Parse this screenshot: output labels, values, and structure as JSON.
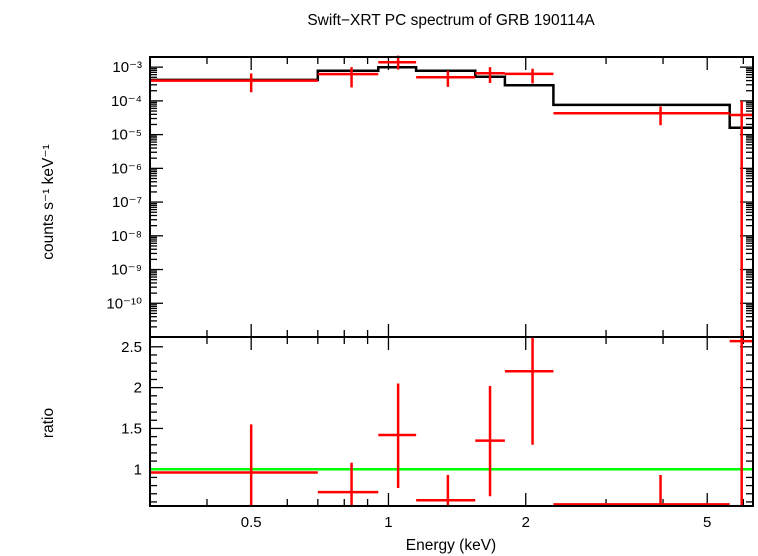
{
  "chart_data": [
    {
      "type": "line",
      "title": "Swift−XRT PC spectrum of GRB 190114A",
      "ylabel": "counts s⁻¹ keV⁻¹",
      "xscale": "log",
      "yscale": "log",
      "xlim": [
        0.3,
        6.3
      ],
      "ylim": [
        1e-11,
        0.002
      ],
      "y_ticks": [
        {
          "value": 1e-10,
          "label": "10⁻¹⁰"
        },
        {
          "value": 1e-09,
          "label": "10⁻⁹"
        },
        {
          "value": 1e-08,
          "label": "10⁻⁸"
        },
        {
          "value": 1e-07,
          "label": "10⁻⁷"
        },
        {
          "value": 1e-06,
          "label": "10⁻⁶"
        },
        {
          "value": 1e-05,
          "label": "10⁻⁵"
        },
        {
          "value": 0.0001,
          "label": "10⁻⁴"
        },
        {
          "value": 0.001,
          "label": "10⁻³"
        }
      ],
      "model_color": "#000000",
      "data_color": "#ff0000",
      "model_step": [
        {
          "x0": 0.3,
          "x1": 0.7,
          "y": 0.00042
        },
        {
          "x0": 0.7,
          "x1": 0.95,
          "y": 0.00078
        },
        {
          "x0": 0.95,
          "x1": 1.15,
          "y": 0.001
        },
        {
          "x0": 1.15,
          "x1": 1.55,
          "y": 0.00078
        },
        {
          "x0": 1.55,
          "x1": 1.8,
          "y": 0.00052
        },
        {
          "x0": 1.8,
          "x1": 2.3,
          "y": 0.00029
        },
        {
          "x0": 2.3,
          "x1": 5.6,
          "y": 7.6e-05
        },
        {
          "x0": 5.6,
          "x1": 6.3,
          "y": 1.6e-05
        }
      ],
      "series": [
        {
          "points": [
            {
              "x": 0.5,
              "xlo": 0.3,
              "xhi": 0.7,
              "y": 0.0004,
              "ylo": 0.00018,
              "yhi": 0.00065
            },
            {
              "x": 0.83,
              "xlo": 0.7,
              "xhi": 0.95,
              "y": 0.00062,
              "ylo": 0.00025,
              "yhi": 0.001
            },
            {
              "x": 1.05,
              "xlo": 0.95,
              "xhi": 1.15,
              "y": 0.0014,
              "ylo": 0.00085,
              "yhi": 0.0022
            },
            {
              "x": 1.35,
              "xlo": 1.15,
              "xhi": 1.55,
              "y": 0.0005,
              "ylo": 0.00026,
              "yhi": 0.00078
            },
            {
              "x": 1.67,
              "xlo": 1.55,
              "xhi": 1.8,
              "y": 0.00066,
              "ylo": 0.00034,
              "yhi": 0.001
            },
            {
              "x": 2.07,
              "xlo": 1.8,
              "xhi": 2.3,
              "y": 0.00063,
              "ylo": 0.00033,
              "yhi": 0.0009
            },
            {
              "x": 3.95,
              "xlo": 2.3,
              "xhi": 5.6,
              "y": 4.3e-05,
              "ylo": 1.9e-05,
              "yhi": 6.8e-05
            },
            {
              "x": 5.95,
              "xlo": 5.6,
              "xhi": 6.3,
              "y": 3.8e-05,
              "ylo": 1e-11,
              "yhi": 0.0001
            }
          ]
        }
      ]
    },
    {
      "type": "line",
      "xlabel": "Energy (keV)",
      "ylabel": "ratio",
      "xscale": "log",
      "xlim": [
        0.3,
        6.3
      ],
      "ylim": [
        0.55,
        2.62
      ],
      "x_ticks": [
        {
          "value": 0.5,
          "label": "0.5"
        },
        {
          "value": 1,
          "label": "1"
        },
        {
          "value": 2,
          "label": "2"
        },
        {
          "value": 5,
          "label": "5"
        }
      ],
      "y_ticks": [
        {
          "value": 1,
          "label": "1"
        },
        {
          "value": 1.5,
          "label": "1.5"
        },
        {
          "value": 2,
          "label": "2"
        },
        {
          "value": 2.5,
          "label": "2.5"
        }
      ],
      "reference_line": {
        "y": 1,
        "color": "#00ff00"
      },
      "data_color": "#ff0000",
      "series": [
        {
          "points": [
            {
              "x": 0.5,
              "xlo": 0.3,
              "xhi": 0.7,
              "y": 0.96,
              "ylo": 0.55,
              "yhi": 1.55
            },
            {
              "x": 0.83,
              "xlo": 0.7,
              "xhi": 0.95,
              "y": 0.72,
              "ylo": 0.55,
              "yhi": 1.08
            },
            {
              "x": 1.05,
              "xlo": 0.95,
              "xhi": 1.15,
              "y": 1.42,
              "ylo": 0.77,
              "yhi": 2.05
            },
            {
              "x": 1.35,
              "xlo": 1.15,
              "xhi": 1.55,
              "y": 0.62,
              "ylo": 0.55,
              "yhi": 0.93
            },
            {
              "x": 1.67,
              "xlo": 1.55,
              "xhi": 1.8,
              "y": 1.35,
              "ylo": 0.67,
              "yhi": 2.02
            },
            {
              "x": 2.07,
              "xlo": 1.8,
              "xhi": 2.3,
              "y": 2.2,
              "ylo": 1.3,
              "yhi": 2.62
            },
            {
              "x": 3.95,
              "xlo": 2.3,
              "xhi": 5.6,
              "y": 0.57,
              "ylo": 0.55,
              "yhi": 0.93
            },
            {
              "x": 5.95,
              "xlo": 5.6,
              "xhi": 6.3,
              "y": 2.57,
              "ylo": 0.55,
              "yhi": 2.62
            }
          ]
        }
      ]
    }
  ]
}
